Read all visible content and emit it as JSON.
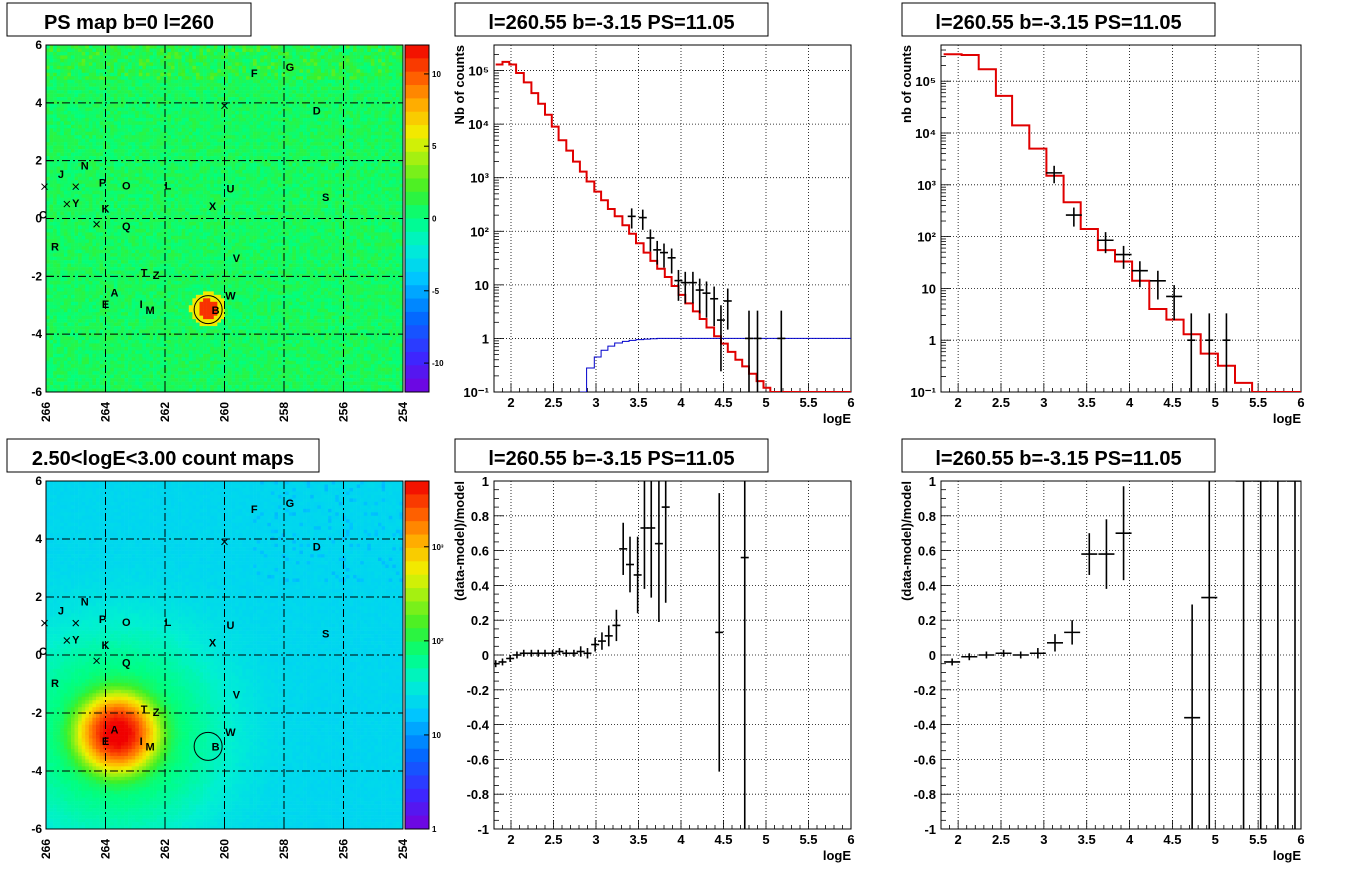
{
  "chart_data": [
    {
      "id": "ps_map",
      "type": "heatmap",
      "title": "PS map b=0 l=260",
      "x_ticks": [
        "266",
        "264",
        "262",
        "260",
        "258",
        "256",
        "254"
      ],
      "y_ticks": [
        "6",
        "4",
        "2",
        "0",
        "-2",
        "-4",
        "-6"
      ],
      "xlim": [
        266,
        254
      ],
      "ylim": [
        -6,
        6
      ],
      "color_scale": {
        "type": "linear",
        "ticks": [
          "10",
          "5",
          "0",
          "-5",
          "-10"
        ],
        "range": [
          -12,
          12
        ]
      },
      "sources": [
        {
          "label": "F",
          "l": 259.0,
          "b": 4.9
        },
        {
          "label": "G",
          "l": 257.8,
          "b": 5.1
        },
        {
          "label": "D",
          "l": 256.9,
          "b": 3.6
        },
        {
          "label": "N",
          "l": 264.7,
          "b": 1.7
        },
        {
          "label": "J",
          "l": 265.5,
          "b": 1.4
        },
        {
          "label": "P",
          "l": 264.1,
          "b": 1.1
        },
        {
          "label": "O",
          "l": 263.3,
          "b": 1.0
        },
        {
          "label": "L",
          "l": 261.9,
          "b": 1.0
        },
        {
          "label": "U",
          "l": 259.8,
          "b": 0.9
        },
        {
          "label": "S",
          "l": 256.6,
          "b": 0.6
        },
        {
          "label": "Y",
          "l": 265.0,
          "b": 0.4
        },
        {
          "label": "K",
          "l": 264.0,
          "b": 0.2
        },
        {
          "label": "X",
          "l": 260.4,
          "b": 0.3
        },
        {
          "label": "C",
          "l": 266.1,
          "b": 0.0
        },
        {
          "label": "Q",
          "l": 263.3,
          "b": -0.4
        },
        {
          "label": "R",
          "l": 265.7,
          "b": -1.1
        },
        {
          "label": "V",
          "l": 259.6,
          "b": -1.5
        },
        {
          "label": "T",
          "l": 262.7,
          "b": -2.0
        },
        {
          "label": "Z",
          "l": 262.3,
          "b": -2.1
        },
        {
          "label": "A",
          "l": 263.7,
          "b": -2.7
        },
        {
          "label": "W",
          "l": 259.8,
          "b": -2.8
        },
        {
          "label": "E",
          "l": 264.0,
          "b": -3.1
        },
        {
          "label": "I",
          "l": 262.8,
          "b": -3.1
        },
        {
          "label": "M",
          "l": 262.5,
          "b": -3.3
        },
        {
          "label": "B",
          "l": 260.3,
          "b": -3.3
        }
      ],
      "hotspot": {
        "l": 260.55,
        "b": -3.15
      }
    },
    {
      "id": "count_map",
      "type": "heatmap",
      "title": "2.50<logE<3.00 count maps",
      "x_ticks": [
        "266",
        "264",
        "262",
        "260",
        "258",
        "256",
        "254"
      ],
      "y_ticks": [
        "6",
        "4",
        "2",
        "0",
        "-2",
        "-4",
        "-6"
      ],
      "xlim": [
        266,
        254
      ],
      "ylim": [
        -6,
        6
      ],
      "color_scale": {
        "type": "log",
        "ticks": [
          "10³",
          "10²",
          "10",
          "1"
        ],
        "range": [
          1,
          5000
        ]
      },
      "peak": {
        "l": 263.6,
        "b": -2.7
      }
    },
    {
      "id": "spectrum_a",
      "type": "line",
      "title": "l=260.55 b=-3.15 PS=11.05",
      "xlabel": "logE",
      "ylabel": "Nb of counts",
      "xlim": [
        1.8,
        6
      ],
      "ylim": [
        0.1,
        300000
      ],
      "yscale": "log",
      "x_ticks": [
        "2",
        "2.5",
        "3",
        "3.5",
        "4",
        "4.5",
        "5",
        "5.5",
        "6"
      ],
      "y_ticks": [
        "10⁻¹",
        "1",
        "10",
        "10²",
        "10³",
        "10⁴",
        "10⁵"
      ],
      "grid": true,
      "data_points": [
        {
          "x": 3.42,
          "y": 190
        },
        {
          "x": 3.55,
          "y": 180
        },
        {
          "x": 3.64,
          "y": 75
        },
        {
          "x": 3.72,
          "y": 45
        },
        {
          "x": 3.8,
          "y": 40
        },
        {
          "x": 3.89,
          "y": 32
        },
        {
          "x": 3.97,
          "y": 12
        },
        {
          "x": 4.05,
          "y": 11
        },
        {
          "x": 4.14,
          "y": 11
        },
        {
          "x": 4.22,
          "y": 8
        },
        {
          "x": 4.3,
          "y": 7
        },
        {
          "x": 4.39,
          "y": 5.5
        },
        {
          "x": 4.47,
          "y": 2.2
        },
        {
          "x": 4.55,
          "y": 5
        }
      ],
      "upper_error_points": [
        {
          "x": 4.8,
          "y": 1
        },
        {
          "x": 4.9,
          "y": 1
        },
        {
          "x": 5.18,
          "y": 1
        }
      ],
      "model_red": [
        [
          1.82,
          130000
        ],
        [
          1.9,
          145000
        ],
        [
          1.98,
          130000
        ],
        [
          2.06,
          90000
        ],
        [
          2.15,
          60000
        ],
        [
          2.24,
          38000
        ],
        [
          2.32,
          24000
        ],
        [
          2.4,
          15000
        ],
        [
          2.48,
          9000
        ],
        [
          2.56,
          5000
        ],
        [
          2.65,
          3200
        ],
        [
          2.73,
          2000
        ],
        [
          2.81,
          1300
        ],
        [
          2.89,
          850
        ],
        [
          2.98,
          550
        ],
        [
          3.06,
          380
        ],
        [
          3.14,
          260
        ],
        [
          3.22,
          190
        ],
        [
          3.31,
          130
        ],
        [
          3.39,
          90
        ],
        [
          3.47,
          60
        ],
        [
          3.56,
          40
        ],
        [
          3.64,
          28
        ],
        [
          3.72,
          20
        ],
        [
          3.81,
          14
        ],
        [
          3.89,
          9.5
        ],
        [
          3.97,
          6.5
        ],
        [
          4.05,
          4.5
        ],
        [
          4.14,
          3.2
        ],
        [
          4.22,
          2.3
        ],
        [
          4.3,
          1.6
        ],
        [
          4.39,
          1.1
        ],
        [
          4.47,
          0.8
        ],
        [
          4.55,
          0.56
        ],
        [
          4.64,
          0.4
        ],
        [
          4.72,
          0.3
        ],
        [
          4.8,
          0.22
        ],
        [
          4.89,
          0.16
        ],
        [
          4.97,
          0.12
        ],
        [
          5.05,
          0.1
        ],
        [
          5.14,
          0.1
        ]
      ],
      "model_blue": [
        [
          2.81,
          0.1
        ],
        [
          2.89,
          0.28
        ],
        [
          2.98,
          0.45
        ],
        [
          3.06,
          0.6
        ],
        [
          3.14,
          0.72
        ],
        [
          3.22,
          0.82
        ],
        [
          3.31,
          0.88
        ],
        [
          3.39,
          0.92
        ],
        [
          3.47,
          0.95
        ],
        [
          3.56,
          0.97
        ],
        [
          3.64,
          0.99
        ],
        [
          3.72,
          1.0
        ],
        [
          3.81,
          1.0
        ],
        [
          6.0,
          1.0
        ]
      ]
    },
    {
      "id": "spectrum_b",
      "type": "line",
      "title": "l=260.55 b=-3.15 PS=11.05",
      "xlabel": "logE",
      "ylabel": "nb of counts",
      "xlim": [
        1.8,
        6
      ],
      "ylim": [
        0.1,
        500000
      ],
      "yscale": "log",
      "x_ticks": [
        "2",
        "2.5",
        "3",
        "3.5",
        "4",
        "4.5",
        "5",
        "5.5",
        "6"
      ],
      "y_ticks": [
        "10⁻¹",
        "1",
        "10",
        "10²",
        "10³",
        "10⁴",
        "10⁵"
      ],
      "grid": true,
      "data_points": [
        {
          "x": 3.12,
          "y": 1700
        },
        {
          "x": 3.35,
          "y": 260
        },
        {
          "x": 3.72,
          "y": 85
        },
        {
          "x": 3.93,
          "y": 45
        },
        {
          "x": 4.12,
          "y": 22
        },
        {
          "x": 4.33,
          "y": 14
        },
        {
          "x": 4.52,
          "y": 7
        }
      ],
      "upper_error_points": [
        {
          "x": 4.72,
          "y": 1
        },
        {
          "x": 4.93,
          "y": 1
        },
        {
          "x": 5.13,
          "y": 1
        }
      ],
      "model_red": [
        [
          1.83,
          330000
        ],
        [
          2.04,
          320000
        ],
        [
          2.24,
          170000
        ],
        [
          2.44,
          52000
        ],
        [
          2.63,
          14000
        ],
        [
          2.83,
          5000
        ],
        [
          3.03,
          1500
        ],
        [
          3.23,
          460
        ],
        [
          3.43,
          140
        ],
        [
          3.63,
          55
        ],
        [
          3.83,
          33
        ],
        [
          4.03,
          14
        ],
        [
          4.23,
          4
        ],
        [
          4.43,
          2.5
        ],
        [
          4.63,
          1.3
        ],
        [
          4.83,
          0.55
        ],
        [
          5.03,
          0.32
        ],
        [
          5.23,
          0.15
        ],
        [
          5.43,
          0.1
        ],
        [
          6.0,
          0.1
        ]
      ]
    },
    {
      "id": "residual_a",
      "type": "scatter",
      "title": "l=260.55 b=-3.15 PS=11.05",
      "xlabel": "logE",
      "ylabel": "(data-model)/model",
      "xlim": [
        1.8,
        6
      ],
      "ylim": [
        -1,
        1
      ],
      "x_ticks": [
        "2",
        "2.5",
        "3",
        "3.5",
        "4",
        "4.5",
        "5",
        "5.5",
        "6"
      ],
      "y_ticks": [
        "1",
        "0.8",
        "0.6",
        "0.4",
        "0.2",
        "0",
        "-0.2",
        "-0.4",
        "-0.6",
        "-0.8",
        "-1"
      ],
      "grid": true,
      "points": [
        {
          "x": 1.82,
          "y": -0.05,
          "err": 0.02
        },
        {
          "x": 1.9,
          "y": -0.04,
          "err": 0.02
        },
        {
          "x": 1.99,
          "y": -0.02,
          "err": 0.02
        },
        {
          "x": 2.07,
          "y": 0.0,
          "err": 0.02
        },
        {
          "x": 2.15,
          "y": 0.01,
          "err": 0.02
        },
        {
          "x": 2.24,
          "y": 0.01,
          "err": 0.02
        },
        {
          "x": 2.32,
          "y": 0.01,
          "err": 0.02
        },
        {
          "x": 2.4,
          "y": 0.01,
          "err": 0.02
        },
        {
          "x": 2.49,
          "y": 0.01,
          "err": 0.02
        },
        {
          "x": 2.57,
          "y": 0.02,
          "err": 0.02
        },
        {
          "x": 2.65,
          "y": 0.01,
          "err": 0.02
        },
        {
          "x": 2.74,
          "y": 0.01,
          "err": 0.02
        },
        {
          "x": 2.82,
          "y": 0.02,
          "err": 0.03
        },
        {
          "x": 2.9,
          "y": 0.01,
          "err": 0.03
        },
        {
          "x": 2.99,
          "y": 0.06,
          "err": 0.04
        },
        {
          "x": 3.07,
          "y": 0.08,
          "err": 0.05
        },
        {
          "x": 3.15,
          "y": 0.11,
          "err": 0.06
        },
        {
          "x": 3.24,
          "y": 0.17,
          "err": 0.09
        },
        {
          "x": 3.32,
          "y": 0.61,
          "err": 0.15
        },
        {
          "x": 3.4,
          "y": 0.52,
          "err": 0.16
        },
        {
          "x": 3.49,
          "y": 0.46,
          "err": 0.22
        },
        {
          "x": 3.57,
          "y": 0.73,
          "err": 0.35
        },
        {
          "x": 3.65,
          "y": 0.73,
          "err": 0.4
        },
        {
          "x": 3.74,
          "y": 0.64,
          "err": 0.45
        },
        {
          "x": 3.82,
          "y": 0.85,
          "err": 0.55
        },
        {
          "x": 4.45,
          "y": 0.13,
          "err": 0.8
        },
        {
          "x": 4.75,
          "y": 0.56,
          "err": 1.6
        }
      ]
    },
    {
      "id": "residual_b",
      "type": "scatter",
      "title": "l=260.55 b=-3.15 PS=11.05",
      "xlabel": "logE",
      "ylabel": "(data-model)/model",
      "xlim": [
        1.8,
        6
      ],
      "ylim": [
        -1,
        1
      ],
      "x_ticks": [
        "2",
        "2.5",
        "3",
        "3.5",
        "4",
        "4.5",
        "5",
        "5.5",
        "6"
      ],
      "y_ticks": [
        "1",
        "0.8",
        "0.6",
        "0.4",
        "0.2",
        "0",
        "-0.2",
        "-0.4",
        "-0.6",
        "-0.8",
        "-1"
      ],
      "grid": true,
      "points": [
        {
          "x": 1.93,
          "y": -0.04,
          "err": 0.02
        },
        {
          "x": 2.13,
          "y": -0.01,
          "err": 0.02
        },
        {
          "x": 2.33,
          "y": 0.0,
          "err": 0.02
        },
        {
          "x": 2.53,
          "y": 0.01,
          "err": 0.02
        },
        {
          "x": 2.73,
          "y": 0.0,
          "err": 0.02
        },
        {
          "x": 2.93,
          "y": 0.01,
          "err": 0.03
        },
        {
          "x": 3.13,
          "y": 0.07,
          "err": 0.05
        },
        {
          "x": 3.33,
          "y": 0.13,
          "err": 0.07
        },
        {
          "x": 3.53,
          "y": 0.58,
          "err": 0.12
        },
        {
          "x": 3.73,
          "y": 0.58,
          "err": 0.2
        },
        {
          "x": 3.93,
          "y": 0.7,
          "err": 0.27
        },
        {
          "x": 4.73,
          "y": -0.36,
          "err": 0.65
        },
        {
          "x": 4.93,
          "y": 0.33,
          "err": 1.4
        },
        {
          "x": 5.33,
          "y": 1.0,
          "err": 3
        },
        {
          "x": 5.53,
          "y": 1.0,
          "err": 3
        },
        {
          "x": 5.73,
          "y": 1.0,
          "err": 3
        },
        {
          "x": 5.93,
          "y": 1.0,
          "err": 3
        }
      ]
    }
  ]
}
